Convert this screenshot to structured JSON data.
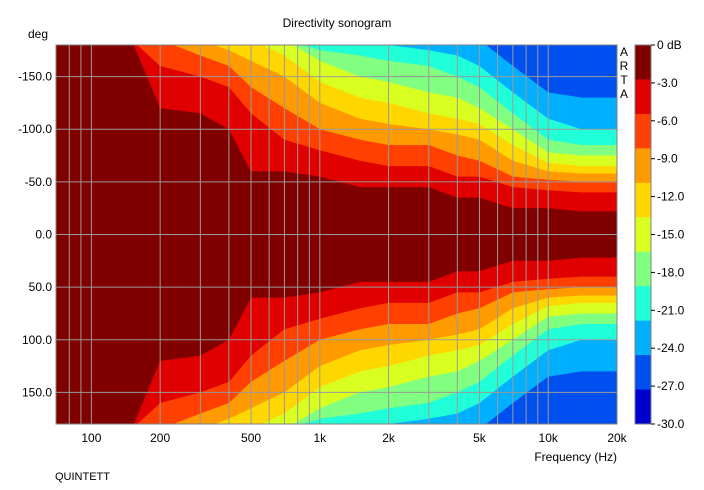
{
  "chart_data": {
    "type": "heatmap",
    "title": "Directivity sonogram",
    "ylabel": "deg",
    "xlabel": "Frequency (Hz)",
    "footer": "QUINTETT",
    "watermark": "ARTA",
    "x_scale": "log",
    "xlim": [
      70,
      20000
    ],
    "ylim": [
      -180,
      180
    ],
    "y_axis_direction": "downward-positive",
    "x_ticks": [
      100,
      200,
      500,
      1000,
      2000,
      5000,
      10000,
      20000
    ],
    "x_tick_labels": [
      "100",
      "200",
      "500",
      "1k",
      "2k",
      "5k",
      "10k",
      "20k"
    ],
    "y_ticks": [
      -150,
      -100,
      -50,
      0,
      50,
      100,
      150
    ],
    "y_tick_labels": [
      "-150.0",
      "-100.0",
      "-50.0",
      "0.0",
      "50.0",
      "100.0",
      "150.0"
    ],
    "grid": true,
    "colorbar": {
      "unit": "dB",
      "labels": [
        "0 dB",
        "-3.0",
        "-6.0",
        "-9.0",
        "-12.0",
        "-15.0",
        "-18.0",
        "-21.0",
        "-24.0",
        "-27.0",
        "-30.0"
      ],
      "levels": [
        0,
        -3,
        -6,
        -9,
        -12,
        -15,
        -18,
        -21,
        -24,
        -27,
        -30
      ],
      "colors": [
        "#800000",
        "#e00000",
        "#ff4000",
        "#ff9a00",
        "#ffd700",
        "#d8ff20",
        "#80ff80",
        "#20ffd8",
        "#00b0ff",
        "#0050f0",
        "#0000d0"
      ]
    },
    "contours": {
      "frequencies": [
        70,
        150,
        200,
        300,
        400,
        500,
        700,
        1000,
        1500,
        2000,
        3000,
        4000,
        5000,
        7000,
        10000,
        14000,
        20000
      ],
      "bounding_angles_deg": {
        "-3": [
          185,
          185,
          120,
          115,
          100,
          60,
          60,
          55,
          45,
          45,
          45,
          35,
          35,
          25,
          25,
          22,
          22
        ],
        "-6": [
          185,
          185,
          160,
          150,
          140,
          115,
          90,
          80,
          70,
          65,
          65,
          55,
          55,
          45,
          42,
          40,
          40
        ],
        "-9": [
          185,
          185,
          185,
          170,
          160,
          140,
          120,
          100,
          90,
          85,
          85,
          75,
          70,
          55,
          52,
          50,
          50
        ],
        "-12": [
          185,
          185,
          185,
          185,
          175,
          165,
          150,
          125,
          110,
          105,
          100,
          95,
          90,
          70,
          60,
          58,
          58
        ],
        "-15": [
          185,
          185,
          185,
          185,
          185,
          185,
          170,
          145,
          130,
          125,
          115,
          110,
          105,
          85,
          68,
          65,
          65
        ],
        "-18": [
          185,
          185,
          185,
          185,
          185,
          185,
          185,
          165,
          150,
          145,
          135,
          130,
          120,
          100,
          78,
          75,
          75
        ],
        "-21": [
          185,
          185,
          185,
          185,
          185,
          185,
          185,
          175,
          170,
          165,
          160,
          150,
          140,
          115,
          90,
          85,
          85
        ],
        "-24": [
          185,
          185,
          185,
          185,
          185,
          185,
          185,
          185,
          185,
          180,
          175,
          170,
          160,
          135,
          110,
          100,
          100
        ],
        "-27": [
          185,
          185,
          185,
          185,
          185,
          185,
          185,
          185,
          185,
          185,
          185,
          185,
          185,
          160,
          135,
          130,
          130
        ]
      }
    }
  }
}
